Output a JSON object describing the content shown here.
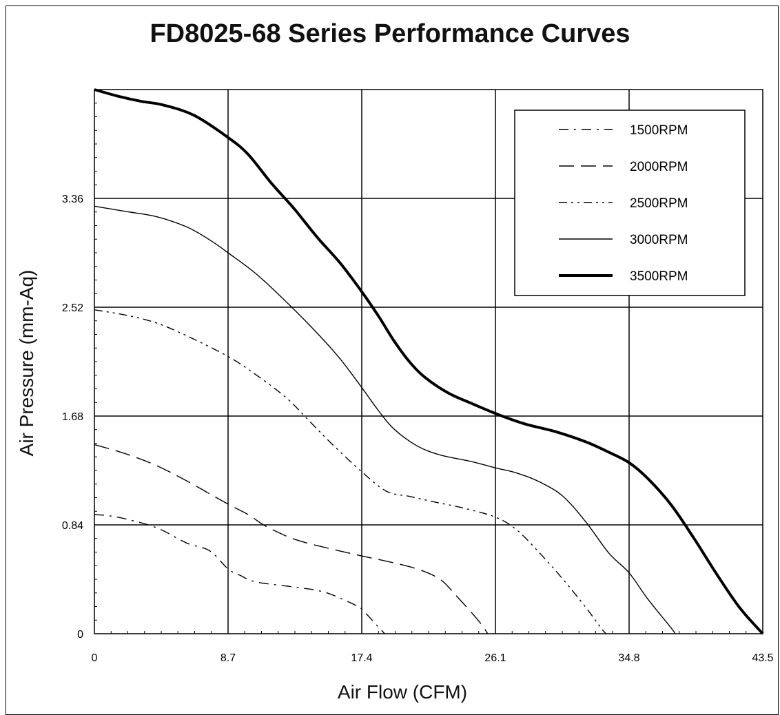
{
  "chart_data": {
    "type": "line",
    "title": "FD8025-68 Series Performance Curves",
    "xlabel": "Air Flow (CFM)",
    "ylabel": "Air Pressure (mm-Aq)",
    "xlim": [
      0,
      43.5
    ],
    "ylim": [
      0,
      4.2
    ],
    "x_ticks": [
      0,
      8.7,
      17.4,
      26.1,
      34.8,
      43.5
    ],
    "x_tick_labels": [
      "0",
      "8.7",
      "17.4",
      "26.1",
      "34.8",
      "43.5"
    ],
    "y_ticks": [
      0,
      0.84,
      1.68,
      2.52,
      3.36
    ],
    "y_tick_labels": [
      "0",
      "0.84",
      "1.68",
      "2.52",
      "3.36"
    ],
    "grid": true,
    "legend_position": "top-right",
    "series": [
      {
        "name": "1500RPM",
        "style": "dash-dot",
        "weight": "thin",
        "points": [
          [
            0,
            0.92
          ],
          [
            1.5,
            0.9
          ],
          [
            4,
            0.82
          ],
          [
            6,
            0.7
          ],
          [
            7.5,
            0.64
          ],
          [
            8.7,
            0.5
          ],
          [
            9.5,
            0.45
          ],
          [
            10.5,
            0.4
          ],
          [
            13,
            0.36
          ],
          [
            15,
            0.32
          ],
          [
            17,
            0.22
          ],
          [
            17.4,
            0.19
          ],
          [
            18.5,
            0.05
          ],
          [
            18.9,
            0
          ]
        ]
      },
      {
        "name": "2000RPM",
        "style": "long-dash",
        "weight": "thin",
        "points": [
          [
            0,
            1.46
          ],
          [
            2,
            1.39
          ],
          [
            4,
            1.3
          ],
          [
            6,
            1.18
          ],
          [
            8.7,
            1.0
          ],
          [
            10,
            0.92
          ],
          [
            11,
            0.84
          ],
          [
            12,
            0.78
          ],
          [
            13,
            0.73
          ],
          [
            14.5,
            0.68
          ],
          [
            17.4,
            0.6
          ],
          [
            19,
            0.56
          ],
          [
            21,
            0.5
          ],
          [
            22.5,
            0.42
          ],
          [
            23.5,
            0.3
          ],
          [
            25,
            0.1
          ],
          [
            25.6,
            0
          ]
        ]
      },
      {
        "name": "2500RPM",
        "style": "dash-dot-dot",
        "weight": "thin",
        "points": [
          [
            0,
            2.5
          ],
          [
            2,
            2.46
          ],
          [
            4,
            2.4
          ],
          [
            6,
            2.3
          ],
          [
            8.7,
            2.14
          ],
          [
            10.5,
            2.0
          ],
          [
            12.5,
            1.82
          ],
          [
            14,
            1.64
          ],
          [
            15.5,
            1.46
          ],
          [
            17.4,
            1.25
          ],
          [
            19,
            1.1
          ],
          [
            20.5,
            1.06
          ],
          [
            22,
            1.02
          ],
          [
            24,
            0.97
          ],
          [
            26.1,
            0.9
          ],
          [
            27.5,
            0.8
          ],
          [
            29,
            0.62
          ],
          [
            30.5,
            0.42
          ],
          [
            32,
            0.2
          ],
          [
            33,
            0.04
          ],
          [
            33.3,
            0
          ]
        ]
      },
      {
        "name": "3000RPM",
        "style": "solid",
        "weight": "thin",
        "points": [
          [
            0,
            3.3
          ],
          [
            2,
            3.26
          ],
          [
            4,
            3.22
          ],
          [
            6,
            3.14
          ],
          [
            7.5,
            3.04
          ],
          [
            8.7,
            2.94
          ],
          [
            10.5,
            2.78
          ],
          [
            12.5,
            2.56
          ],
          [
            14.5,
            2.32
          ],
          [
            16,
            2.12
          ],
          [
            17.4,
            1.9
          ],
          [
            18.5,
            1.72
          ],
          [
            19.5,
            1.58
          ],
          [
            21,
            1.45
          ],
          [
            22.5,
            1.38
          ],
          [
            24.5,
            1.33
          ],
          [
            26.1,
            1.28
          ],
          [
            27.5,
            1.24
          ],
          [
            29,
            1.17
          ],
          [
            30.5,
            1.06
          ],
          [
            32,
            0.86
          ],
          [
            33.5,
            0.62
          ],
          [
            34.8,
            0.47
          ],
          [
            36,
            0.27
          ],
          [
            37.5,
            0.05
          ],
          [
            37.8,
            0
          ]
        ]
      },
      {
        "name": "3500RPM",
        "style": "solid",
        "weight": "thick",
        "points": [
          [
            0,
            4.2
          ],
          [
            1.5,
            4.15
          ],
          [
            3,
            4.11
          ],
          [
            4.5,
            4.08
          ],
          [
            6.5,
            4.0
          ],
          [
            8.7,
            3.83
          ],
          [
            10,
            3.7
          ],
          [
            11.5,
            3.48
          ],
          [
            13,
            3.28
          ],
          [
            14.5,
            3.06
          ],
          [
            16,
            2.86
          ],
          [
            17.4,
            2.64
          ],
          [
            18.5,
            2.45
          ],
          [
            19.5,
            2.26
          ],
          [
            20.5,
            2.1
          ],
          [
            21.5,
            1.98
          ],
          [
            23,
            1.86
          ],
          [
            24.5,
            1.78
          ],
          [
            26.1,
            1.7
          ],
          [
            28,
            1.62
          ],
          [
            30,
            1.56
          ],
          [
            32,
            1.48
          ],
          [
            33.5,
            1.4
          ],
          [
            34.8,
            1.32
          ],
          [
            36,
            1.2
          ],
          [
            37.5,
            1.0
          ],
          [
            39,
            0.74
          ],
          [
            40.5,
            0.46
          ],
          [
            42,
            0.2
          ],
          [
            43.5,
            0
          ]
        ]
      }
    ]
  }
}
